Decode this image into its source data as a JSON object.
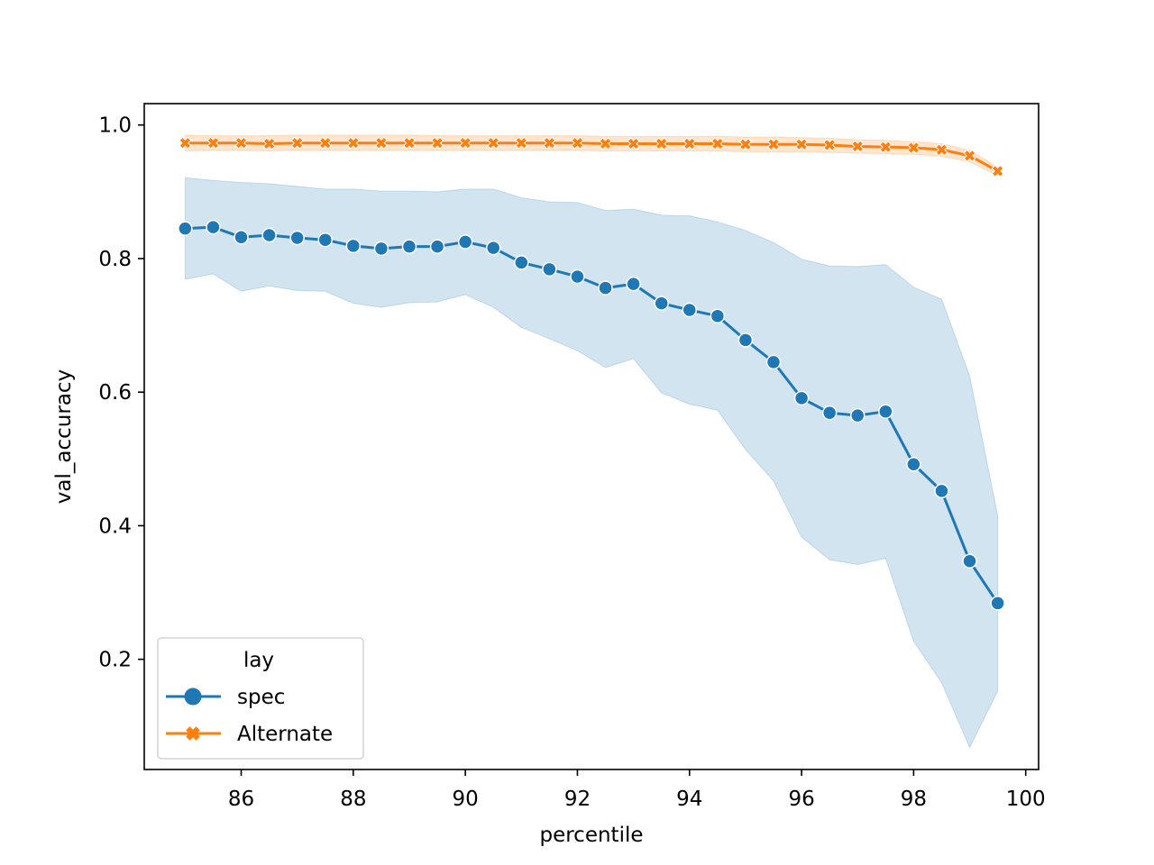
{
  "chart_data": {
    "type": "line",
    "title": "",
    "xlabel": "percentile",
    "ylabel": "val_accuracy",
    "xlim": [
      84.27,
      100.23
    ],
    "ylim": [
      0.035,
      1.032
    ],
    "xticks": [
      86,
      88,
      90,
      92,
      94,
      96,
      98,
      100
    ],
    "yticks": [
      0.2,
      0.4,
      0.6,
      0.8,
      1.0
    ],
    "ytick_labels": [
      "0.2",
      "0.4",
      "0.6",
      "0.8",
      "1.0"
    ],
    "grid": false,
    "legend": {
      "title": "lay",
      "placement": "lower-left"
    },
    "x": [
      85,
      85.5,
      86,
      86.5,
      87,
      87.5,
      88,
      88.5,
      89,
      89.5,
      90,
      90.5,
      91,
      91.5,
      92,
      92.5,
      93,
      93.5,
      94,
      94.5,
      95,
      95.5,
      96,
      96.5,
      97,
      97.5,
      98,
      98.5,
      99,
      99.5
    ],
    "series": [
      {
        "name": "spec",
        "color": "#1f77b4",
        "marker": "circle",
        "values": [
          0.845,
          0.847,
          0.832,
          0.835,
          0.831,
          0.828,
          0.819,
          0.815,
          0.818,
          0.818,
          0.825,
          0.816,
          0.794,
          0.784,
          0.773,
          0.756,
          0.762,
          0.733,
          0.723,
          0.714,
          0.678,
          0.645,
          0.591,
          0.569,
          0.565,
          0.571,
          0.492,
          0.452,
          0.347,
          0.284
        ],
        "ci_upper": [
          0.921,
          0.917,
          0.914,
          0.912,
          0.908,
          0.904,
          0.904,
          0.901,
          0.901,
          0.9,
          0.904,
          0.904,
          0.891,
          0.885,
          0.884,
          0.872,
          0.874,
          0.865,
          0.864,
          0.855,
          0.842,
          0.824,
          0.799,
          0.789,
          0.788,
          0.791,
          0.757,
          0.739,
          0.624,
          0.415
        ],
        "ci_lower": [
          0.769,
          0.777,
          0.751,
          0.759,
          0.752,
          0.751,
          0.733,
          0.727,
          0.734,
          0.735,
          0.746,
          0.727,
          0.697,
          0.68,
          0.662,
          0.637,
          0.65,
          0.599,
          0.582,
          0.573,
          0.514,
          0.467,
          0.383,
          0.349,
          0.342,
          0.351,
          0.227,
          0.165,
          0.068,
          0.152
        ]
      },
      {
        "name": "Alternate",
        "color": "#ff7f0e",
        "marker": "x",
        "values": [
          0.973,
          0.973,
          0.973,
          0.972,
          0.973,
          0.973,
          0.973,
          0.973,
          0.973,
          0.973,
          0.973,
          0.973,
          0.973,
          0.973,
          0.973,
          0.972,
          0.972,
          0.972,
          0.972,
          0.972,
          0.971,
          0.971,
          0.971,
          0.97,
          0.968,
          0.967,
          0.966,
          0.963,
          0.954,
          0.931
        ],
        "ci_upper": [
          0.985,
          0.984,
          0.984,
          0.984,
          0.985,
          0.985,
          0.985,
          0.985,
          0.985,
          0.984,
          0.984,
          0.984,
          0.984,
          0.984,
          0.984,
          0.983,
          0.983,
          0.983,
          0.983,
          0.983,
          0.982,
          0.982,
          0.981,
          0.98,
          0.978,
          0.977,
          0.975,
          0.972,
          0.962,
          0.937
        ],
        "ci_lower": [
          0.961,
          0.962,
          0.962,
          0.961,
          0.962,
          0.962,
          0.962,
          0.962,
          0.962,
          0.962,
          0.962,
          0.962,
          0.962,
          0.962,
          0.962,
          0.961,
          0.961,
          0.961,
          0.961,
          0.961,
          0.96,
          0.96,
          0.96,
          0.959,
          0.958,
          0.957,
          0.956,
          0.953,
          0.945,
          0.924
        ]
      }
    ]
  }
}
